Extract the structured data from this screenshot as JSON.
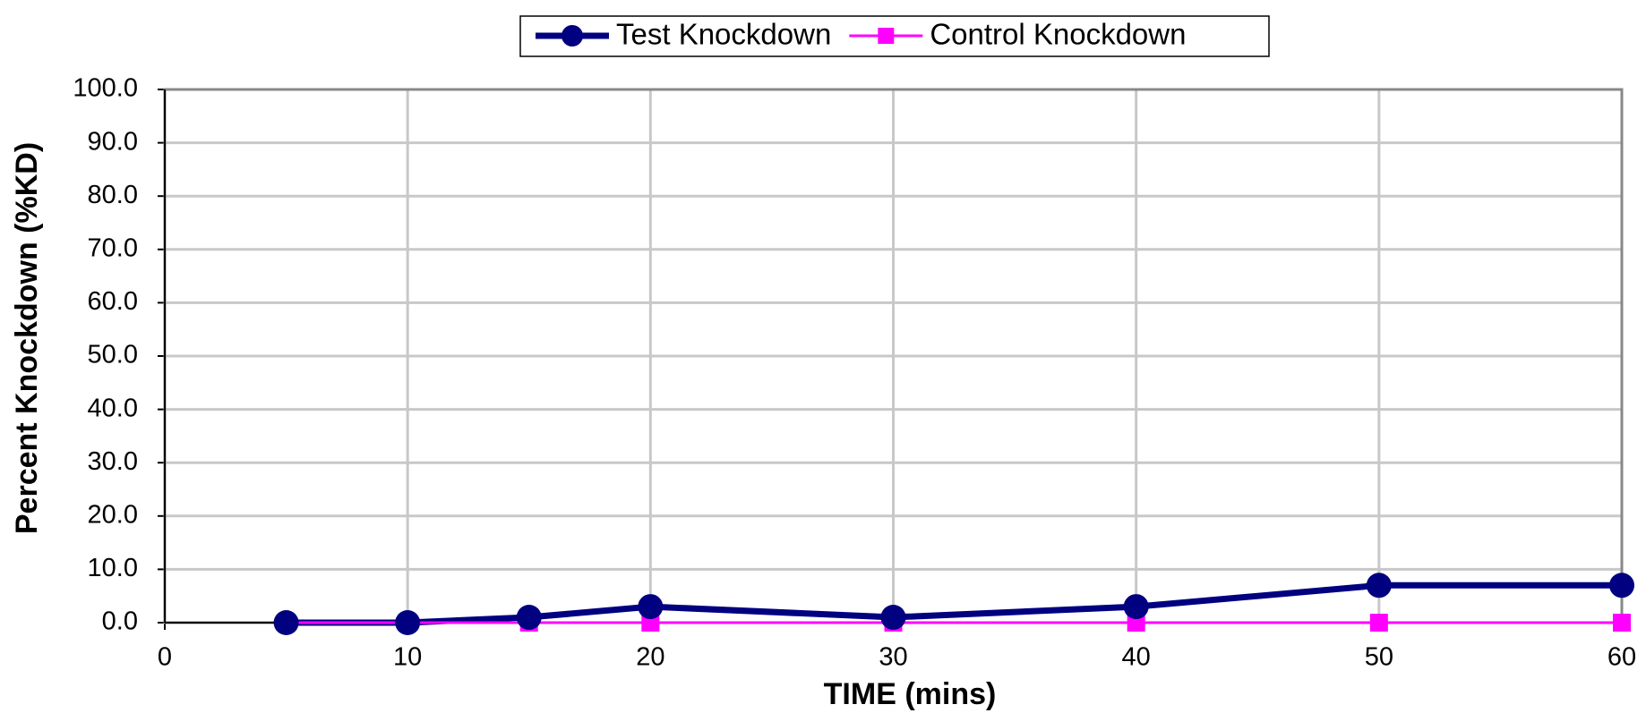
{
  "chart_data": {
    "type": "line",
    "x_label": "TIME (mins)",
    "y_label": "Percent Knockdown (%KD)",
    "x": [
      5,
      10,
      15,
      20,
      30,
      40,
      50,
      60
    ],
    "series": [
      {
        "name": "Test Knockdown",
        "color": "#000080",
        "marker": "circle",
        "values": [
          0,
          0,
          1,
          3,
          1,
          3,
          7,
          7
        ]
      },
      {
        "name": "Control Knockdown",
        "color": "#ff00ff",
        "marker": "square",
        "values": [
          0,
          0,
          0,
          0,
          0,
          0,
          0,
          0
        ]
      }
    ],
    "xlim": [
      0,
      60
    ],
    "xticks": [
      0,
      10,
      20,
      30,
      40,
      50,
      60
    ],
    "ylim": [
      0,
      100
    ],
    "yticks": [
      {
        "value": 0,
        "label": "0.0"
      },
      {
        "value": 10,
        "label": "10.0"
      },
      {
        "value": 20,
        "label": "20.0"
      },
      {
        "value": 30,
        "label": "30.0"
      },
      {
        "value": 40,
        "label": "40.0"
      },
      {
        "value": 50,
        "label": "50.0"
      },
      {
        "value": 60,
        "label": "60.0"
      },
      {
        "value": 70,
        "label": "70.0"
      },
      {
        "value": 80,
        "label": "80.0"
      },
      {
        "value": 90,
        "label": "90.0"
      },
      {
        "value": 100,
        "label": "100.0"
      }
    ],
    "grid": true,
    "legend": "top"
  }
}
